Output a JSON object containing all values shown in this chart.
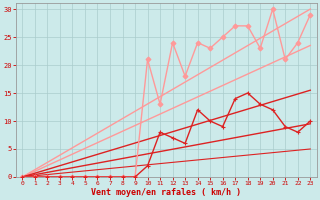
{
  "bg_color": "#cceaea",
  "grid_color": "#aacccc",
  "xlabel": "Vent moyen/en rafales ( km/h )",
  "xlabel_color": "#cc0000",
  "tick_color": "#cc0000",
  "xlim": [
    -0.5,
    23.5
  ],
  "ylim": [
    0,
    31
  ],
  "xticks": [
    0,
    1,
    2,
    3,
    4,
    5,
    6,
    7,
    8,
    9,
    10,
    11,
    12,
    13,
    14,
    15,
    16,
    17,
    18,
    19,
    20,
    21,
    22,
    23
  ],
  "yticks": [
    0,
    5,
    10,
    15,
    20,
    25,
    30
  ],
  "straight_lines": [
    {
      "x": [
        0,
        23
      ],
      "y": [
        0,
        30.0
      ],
      "color": "#ff9999",
      "lw": 1.0
    },
    {
      "x": [
        0,
        23
      ],
      "y": [
        0,
        23.5
      ],
      "color": "#ff9999",
      "lw": 1.0
    },
    {
      "x": [
        0,
        23
      ],
      "y": [
        0,
        15.5
      ],
      "color": "#dd2222",
      "lw": 1.0
    },
    {
      "x": [
        0,
        23
      ],
      "y": [
        0,
        9.5
      ],
      "color": "#dd2222",
      "lw": 1.0
    },
    {
      "x": [
        0,
        23
      ],
      "y": [
        0,
        5.0
      ],
      "color": "#dd2222",
      "lw": 0.8
    }
  ],
  "data_lines": [
    {
      "x": [
        0,
        1,
        2,
        3,
        4,
        5,
        6,
        7,
        8,
        9,
        10,
        11,
        12,
        13,
        14,
        15,
        16,
        17,
        18,
        19,
        20,
        21,
        22,
        23
      ],
      "y": [
        0,
        0,
        0,
        0,
        0,
        0,
        0,
        0,
        0,
        0,
        21,
        13,
        24,
        18,
        24,
        23,
        25,
        27,
        27,
        23,
        30,
        21,
        24,
        29
      ],
      "color": "#ff9999",
      "lw": 1.0,
      "marker": "D",
      "ms": 2.5
    },
    {
      "x": [
        0,
        1,
        2,
        3,
        4,
        5,
        6,
        7,
        8,
        9,
        10,
        11,
        12,
        13,
        14,
        15,
        16,
        17,
        18,
        19,
        20,
        21,
        22,
        23
      ],
      "y": [
        0,
        0,
        0,
        0,
        0,
        0,
        0,
        0,
        0,
        0,
        2,
        8,
        7,
        6,
        12,
        10,
        9,
        14,
        15,
        13,
        12,
        9,
        8,
        10
      ],
      "color": "#dd2222",
      "lw": 1.0,
      "marker": "+",
      "ms": 3.5
    }
  ]
}
